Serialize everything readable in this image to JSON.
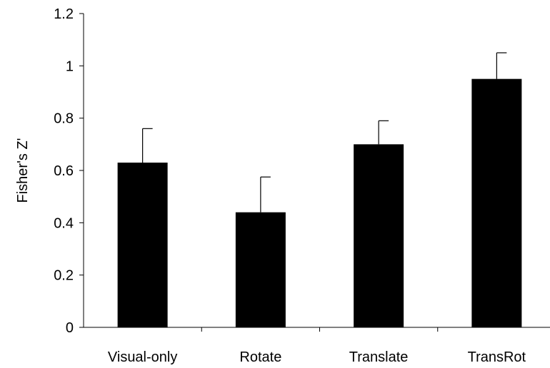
{
  "chart_data": {
    "type": "bar",
    "title": "",
    "xlabel": "",
    "ylabel": "Fisher's Z'",
    "categories": [
      "Visual-only",
      "Rotate",
      "Translate",
      "TransRot"
    ],
    "values": [
      0.63,
      0.44,
      0.7,
      0.95
    ],
    "error_upper": [
      0.13,
      0.135,
      0.09,
      0.1
    ],
    "ylim": [
      0,
      1.2
    ],
    "yticks": [
      0,
      0.2,
      0.4,
      0.6,
      0.8,
      1,
      1.2
    ],
    "ytick_labels": [
      "0",
      "0.2",
      "0.4",
      "0.6",
      "0.8",
      "1",
      "1.2"
    ],
    "grid": false,
    "legend": "none",
    "bar_color": "#000000"
  }
}
